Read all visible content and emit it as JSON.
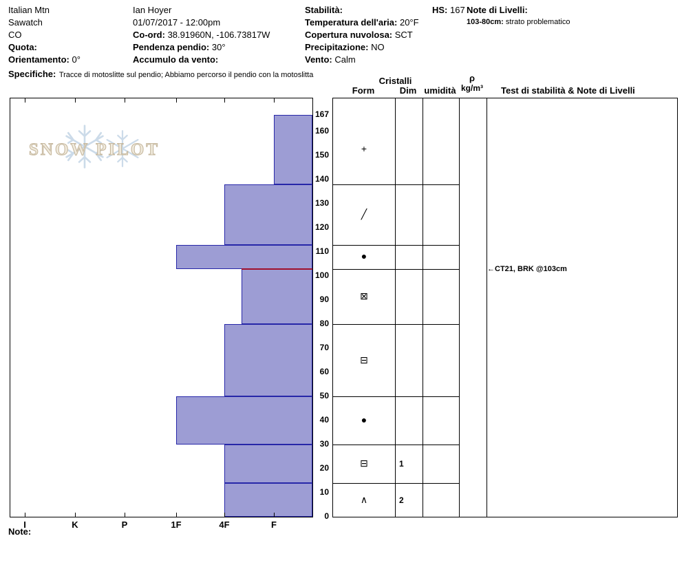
{
  "colors": {
    "bar_fill": "#9d9dd4",
    "bar_border": "#2626a8",
    "problem_line": "#a0102d",
    "watermark_text": "#f0eadd",
    "watermark_outline": "#c6b89e",
    "watermark_flake": "#ccdbe9"
  },
  "header": {
    "site": "Italian Mtn",
    "range": "Sawatch",
    "state": "CO",
    "quota_label": "Quota:",
    "orientamento_label": "Orientamento:",
    "orientamento_value": "0°",
    "observer": "Ian Hoyer",
    "datetime": "01/07/2017 - 12:00pm",
    "coord_label": "Co-ord:",
    "coord_value": "38.91960N, -106.73817W",
    "pendenza_label": "Pendenza pendio:",
    "pendenza_value": "30°",
    "accumulo_label": "Accumulo da vento:",
    "stabilita_label": "Stabilità:",
    "temp_label": "Temperatura dell'aria:",
    "temp_value": "20°F",
    "copertura_label": "Copertura nuvolosa:",
    "copertura_value": "SCT",
    "precip_label": "Precipitazione:",
    "precip_value": "NO",
    "vento_label": "Vento:",
    "vento_value": "Calm",
    "hs_label": "HS:",
    "hs_value": "167",
    "note_livelli_label": "Note di Livelli:",
    "note_livelli_entry_label": "103-80cm:",
    "note_livelli_entry_text": "strato problematico",
    "specifiche_label": "Specifiche:",
    "specifiche_text": "Tracce di motoslitte sul pendio; Abbiamo percorso il pendio con la motoslitta"
  },
  "watermark": {
    "text": "SNOW PILOT"
  },
  "table": {
    "cristalli_header": "Cristalli",
    "col_form": "Form",
    "col_dim": "Dim",
    "col_umidita": "umidità",
    "rho_symbol": "ρ",
    "rho_unit": "kg/m³",
    "test_header": "Test di stabilità & Note di Livelli"
  },
  "footer": {
    "note_label": "Note:"
  },
  "chart_data": {
    "type": "bar",
    "subtype": "snow-hardness-profile",
    "title": "",
    "hs_cm": 167,
    "hardness_categories": [
      "I",
      "K",
      "P",
      "1F",
      "4F",
      "F"
    ],
    "depth_axis_ticks": [
      167,
      160,
      150,
      140,
      130,
      120,
      110,
      100,
      90,
      80,
      70,
      60,
      50,
      40,
      30,
      20,
      10,
      0
    ],
    "depth_range_cm": [
      0,
      167
    ],
    "layers": [
      {
        "top_cm": 167,
        "bottom_cm": 138,
        "hardness": "F",
        "grain_form": "new-snow",
        "grain_form_symbol": "+",
        "dim": "",
        "moisture": "",
        "density": ""
      },
      {
        "top_cm": 138,
        "bottom_cm": 113,
        "hardness": "4F",
        "grain_form": "decomposing-fragments",
        "grain_form_symbol": "╱",
        "dim": "",
        "moisture": "",
        "density": ""
      },
      {
        "top_cm": 113,
        "bottom_cm": 103,
        "hardness": "1F",
        "grain_form": "rounded-grains",
        "grain_form_symbol": "●",
        "dim": "",
        "moisture": "",
        "density": ""
      },
      {
        "top_cm": 103,
        "bottom_cm": 80,
        "hardness": "4F-",
        "grain_form": "rounding-facets",
        "grain_form_symbol": "⊠",
        "dim": "",
        "moisture": "",
        "density": "",
        "problem_layer": true
      },
      {
        "top_cm": 80,
        "bottom_cm": 50,
        "hardness": "4F",
        "grain_form": "faceted-crystals",
        "grain_form_symbol": "⊟",
        "dim": "",
        "moisture": "",
        "density": ""
      },
      {
        "top_cm": 50,
        "bottom_cm": 30,
        "hardness": "1F",
        "grain_form": "rounded-grains",
        "grain_form_symbol": "●",
        "dim": "",
        "moisture": "",
        "density": ""
      },
      {
        "top_cm": 30,
        "bottom_cm": 14,
        "hardness": "4F",
        "grain_form": "faceted-crystals",
        "grain_form_symbol": "⊟",
        "dim": "1",
        "moisture": "",
        "density": ""
      },
      {
        "top_cm": 14,
        "bottom_cm": 0,
        "hardness": "4F",
        "grain_form": "depth-hoar",
        "grain_form_symbol": "∧",
        "dim": "2",
        "moisture": "",
        "density": ""
      }
    ],
    "stability_tests": [
      {
        "depth_cm": 103,
        "label": "CT21, BRK @103cm"
      }
    ]
  }
}
